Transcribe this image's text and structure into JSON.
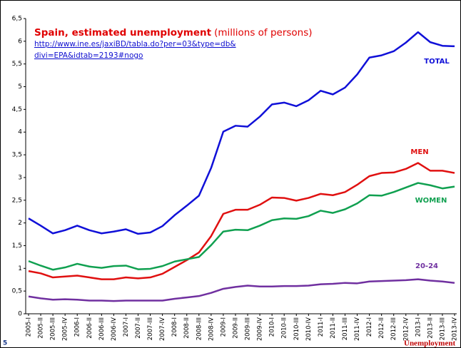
{
  "chart_data": {
    "type": "line",
    "title": "Spain, estimated unemployment",
    "subtitle": "(millions of persons)",
    "source": [
      "http://www.ine.es/jaxiBD/tabla.do?per=03&type=db&",
      "divi=EPA&idtab=2193#nogo"
    ],
    "categories": [
      "2005-I",
      "2005-II",
      "2005-III",
      "2005-IV",
      "2006-I",
      "2006-II",
      "2006-III",
      "2006-IV",
      "2007-I",
      "2007-II",
      "2007-III",
      "2007-IV",
      "2008-I",
      "2008-II",
      "2008-III",
      "2008-IV",
      "2009-I",
      "2009-II",
      "2009-III",
      "2009-IV",
      "2010-I",
      "2010-II",
      "2010-III",
      "2010-IV",
      "2011-I",
      "2011-II",
      "2011-III",
      "2011-IV",
      "2012-I",
      "2012-II",
      "2012-III",
      "2012-IV",
      "2013-I",
      "2013-II",
      "2013-III",
      "2013-IV"
    ],
    "series": [
      {
        "name": "TOTAL",
        "color": "#1010d8",
        "values": [
          2.1,
          1.94,
          1.77,
          1.84,
          1.94,
          1.84,
          1.77,
          1.81,
          1.86,
          1.76,
          1.79,
          1.93,
          2.17,
          2.38,
          2.6,
          3.21,
          4.01,
          4.14,
          4.12,
          4.34,
          4.61,
          4.65,
          4.57,
          4.7,
          4.91,
          4.83,
          4.98,
          5.27,
          5.64,
          5.69,
          5.78,
          5.97,
          6.2,
          5.98,
          5.9,
          5.89
        ]
      },
      {
        "name": "MEN",
        "color": "#e01010",
        "values": [
          0.94,
          0.89,
          0.8,
          0.82,
          0.84,
          0.8,
          0.76,
          0.76,
          0.8,
          0.78,
          0.8,
          0.88,
          1.03,
          1.18,
          1.35,
          1.71,
          2.2,
          2.29,
          2.29,
          2.4,
          2.56,
          2.55,
          2.49,
          2.55,
          2.64,
          2.61,
          2.68,
          2.84,
          3.03,
          3.1,
          3.11,
          3.19,
          3.32,
          3.15,
          3.15,
          3.1
        ]
      },
      {
        "name": "WOMEN",
        "color": "#10a050",
        "values": [
          1.16,
          1.06,
          0.97,
          1.02,
          1.1,
          1.04,
          1.01,
          1.05,
          1.06,
          0.98,
          0.99,
          1.05,
          1.15,
          1.2,
          1.25,
          1.51,
          1.81,
          1.85,
          1.84,
          1.94,
          2.06,
          2.1,
          2.09,
          2.15,
          2.27,
          2.22,
          2.3,
          2.43,
          2.61,
          2.6,
          2.68,
          2.78,
          2.88,
          2.83,
          2.76,
          2.8
        ]
      },
      {
        "name": "20-24",
        "color": "#7030a0",
        "values": [
          0.38,
          0.34,
          0.31,
          0.32,
          0.31,
          0.29,
          0.29,
          0.28,
          0.29,
          0.29,
          0.29,
          0.29,
          0.33,
          0.36,
          0.39,
          0.46,
          0.55,
          0.59,
          0.62,
          0.6,
          0.6,
          0.61,
          0.61,
          0.62,
          0.65,
          0.66,
          0.68,
          0.67,
          0.71,
          0.72,
          0.73,
          0.74,
          0.76,
          0.73,
          0.71,
          0.68
        ]
      }
    ],
    "ylim": [
      0,
      6.5
    ],
    "yticks": [
      0,
      {
        "value": 0.5,
        "label": "0,5"
      },
      1,
      {
        "value": 1.5,
        "label": "1,5"
      },
      2,
      {
        "value": 2.5,
        "label": "2,5"
      },
      3,
      {
        "value": 3.5,
        "label": "3,5"
      },
      4,
      {
        "value": 4.5,
        "label": "4,5"
      },
      5,
      {
        "value": 5.5,
        "label": "5,5"
      },
      6,
      {
        "value": 6.5,
        "label": "6,5"
      }
    ],
    "grid": false
  },
  "footer": {
    "page_number": "5",
    "section": "Unemployment"
  }
}
